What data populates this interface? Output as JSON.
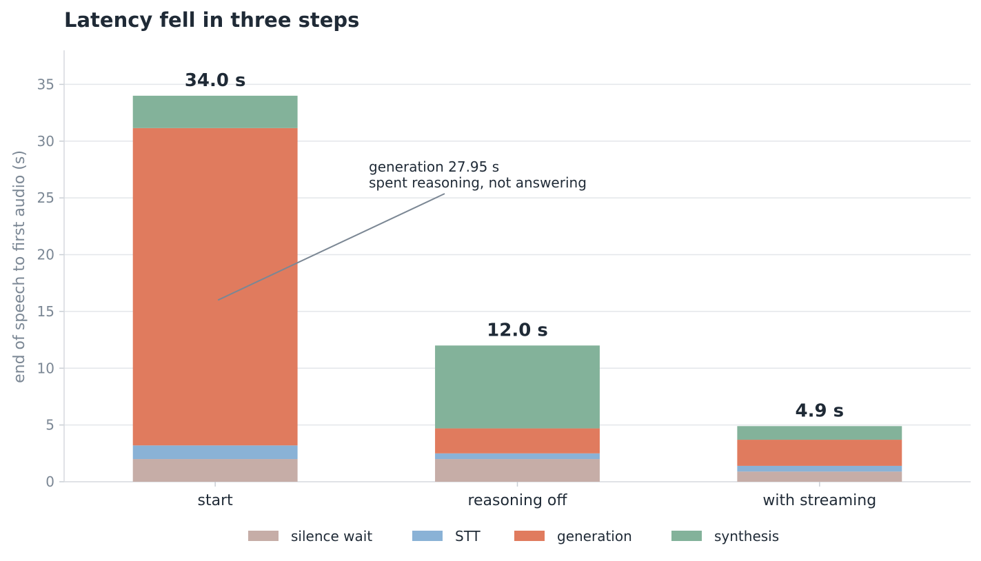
{
  "chart_data": {
    "type": "bar",
    "stacked": true,
    "title": "Latency fell in three steps",
    "ylabel": "end of speech to first audio (s)",
    "xlabel": "",
    "ylim": [
      0,
      38
    ],
    "yticks": [
      0,
      5,
      10,
      15,
      20,
      25,
      30,
      35
    ],
    "grid": true,
    "legend_position": "bottom",
    "categories": [
      "start",
      "reasoning off",
      "with streaming"
    ],
    "series": [
      {
        "name": "silence wait",
        "color": "#c6ada7",
        "values": [
          2.0,
          2.0,
          0.9
        ]
      },
      {
        "name": "STT",
        "color": "#8ab2d6",
        "values": [
          1.2,
          0.5,
          0.5
        ]
      },
      {
        "name": "generation",
        "color": "#e07b5e",
        "values": [
          27.95,
          2.2,
          2.3
        ]
      },
      {
        "name": "synthesis",
        "color": "#83b29a",
        "values": [
          2.85,
          7.3,
          1.2
        ]
      }
    ],
    "totals": [
      "34.0 s",
      "12.0 s",
      "4.9 s"
    ],
    "annotation": {
      "lines": [
        "generation 27.95 s",
        "spent reasoning, not answering"
      ],
      "point": {
        "category": "start",
        "y": 16
      }
    }
  }
}
